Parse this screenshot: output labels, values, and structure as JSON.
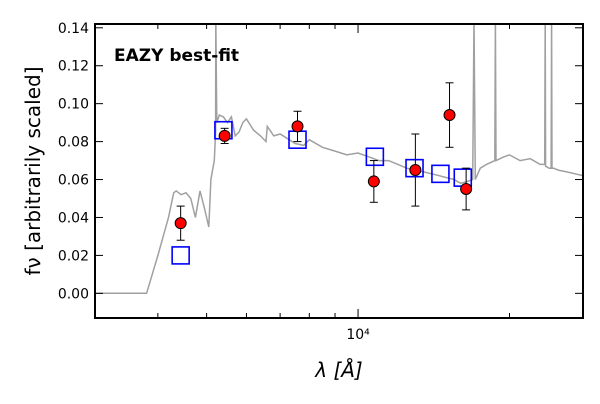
{
  "chart_data": {
    "type": "scatter",
    "annotation": "EAZY best-fit",
    "annotation_color": "#ff0000",
    "xlabel": "λ [Å]",
    "ylabel": "fν [arbitrarily scaled]",
    "x_scale": "log",
    "xlim": [
      3000,
      28000
    ],
    "ylim": [
      -0.013,
      0.142
    ],
    "x_major_ticks": [
      {
        "value": 10000,
        "label": "10⁴"
      }
    ],
    "x_minor_ticks": [
      4000,
      5000,
      6000,
      7000,
      8000,
      9000,
      20000
    ],
    "y_ticks": [
      {
        "value": 0.0,
        "label": "0.00"
      },
      {
        "value": 0.02,
        "label": "0.02"
      },
      {
        "value": 0.04,
        "label": "0.04"
      },
      {
        "value": 0.06,
        "label": "0.06"
      },
      {
        "value": 0.08,
        "label": "0.08"
      },
      {
        "value": 0.1,
        "label": "0.10"
      },
      {
        "value": 0.12,
        "label": "0.12"
      },
      {
        "value": 0.14,
        "label": "0.14"
      }
    ],
    "grid": false,
    "series": [
      {
        "kind": "line",
        "color": "#a0a0a0",
        "x": [
          3000,
          3800,
          4000,
          4100,
          4200,
          4300,
          4350,
          4450,
          4550,
          4650,
          4750,
          4850,
          4950,
          5050,
          5100,
          5180,
          5210,
          5215,
          5240,
          5300,
          5400,
          5500,
          5600,
          5700,
          5800,
          5900,
          6000,
          6200,
          6400,
          6563,
          6600,
          6800,
          7000,
          7200,
          7500,
          7800,
          8000,
          8500,
          9000,
          9500,
          10000,
          10500,
          11000,
          11500,
          12000,
          12500,
          13000,
          13500,
          14000,
          14500,
          15000,
          15500,
          16000,
          16500,
          16900,
          17000,
          17100,
          17500,
          18000,
          18700,
          18750,
          18800,
          19500,
          20000,
          21000,
          22000,
          23000,
          23500,
          23550,
          23600,
          24000,
          24200,
          24250,
          24300,
          24500,
          25000,
          26000,
          27000,
          28000
        ],
        "y": [
          0.0,
          0.0,
          0.02,
          0.03,
          0.04,
          0.053,
          0.054,
          0.052,
          0.053,
          0.05,
          0.04,
          0.054,
          0.045,
          0.035,
          0.06,
          0.07,
          0.085,
          0.145,
          0.09,
          0.094,
          0.093,
          0.09,
          0.093,
          0.083,
          0.085,
          0.09,
          0.092,
          0.086,
          0.083,
          0.08,
          0.088,
          0.083,
          0.084,
          0.082,
          0.079,
          0.078,
          0.081,
          0.077,
          0.075,
          0.073,
          0.074,
          0.072,
          0.07,
          0.07,
          0.068,
          0.066,
          0.065,
          0.064,
          0.063,
          0.062,
          0.061,
          0.06,
          0.058,
          0.059,
          0.06,
          0.145,
          0.06,
          0.066,
          0.068,
          0.07,
          0.145,
          0.07,
          0.072,
          0.073,
          0.07,
          0.071,
          0.068,
          0.068,
          0.145,
          0.067,
          0.066,
          0.066,
          0.145,
          0.066,
          0.066,
          0.065,
          0.064,
          0.063,
          0.062
        ]
      },
      {
        "kind": "open-square",
        "color": "#0000ff",
        "x": [
          4440,
          5400,
          7580,
          10800,
          12950,
          14580,
          16150
        ],
        "y": [
          0.02,
          0.086,
          0.081,
          0.072,
          0.066,
          0.063,
          0.061
        ]
      },
      {
        "kind": "errorbar-circle",
        "color": "#ff0000",
        "x": [
          4440,
          5430,
          7580,
          10750,
          13000,
          15200,
          16400
        ],
        "y": [
          0.037,
          0.083,
          0.088,
          0.059,
          0.065,
          0.094,
          0.055
        ],
        "yerr": [
          0.009,
          0.004,
          0.008,
          0.011,
          0.019,
          0.017,
          0.011
        ]
      }
    ]
  }
}
